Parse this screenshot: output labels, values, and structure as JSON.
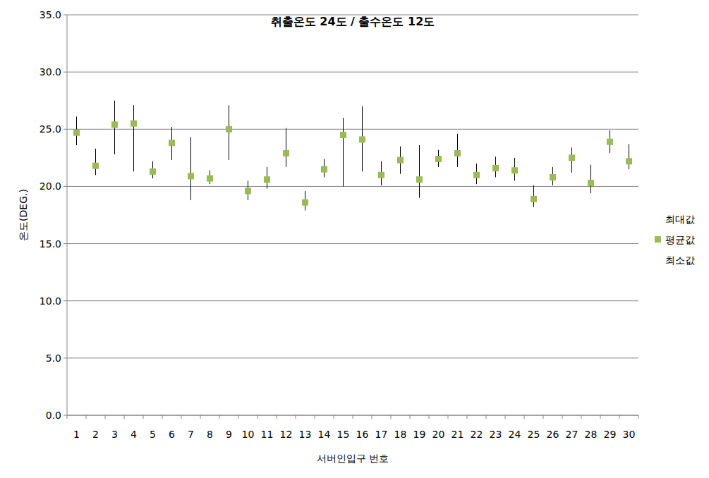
{
  "chart_data": {
    "type": "high_low",
    "title": "취출온도 24도 / 출수온도 12도",
    "x_label": "서버인입구 번호",
    "y_label": "온도(DEG.)",
    "categories": [
      1,
      2,
      3,
      4,
      5,
      6,
      7,
      8,
      9,
      10,
      11,
      12,
      13,
      14,
      15,
      16,
      17,
      18,
      19,
      20,
      21,
      22,
      23,
      24,
      25,
      26,
      27,
      28,
      29,
      30
    ],
    "series": [
      {
        "name": "최대값",
        "color": "#000000",
        "marker": "none",
        "values": [
          26.1,
          23.3,
          27.5,
          27.1,
          22.2,
          25.2,
          24.3,
          21.4,
          27.1,
          20.5,
          21.7,
          25.1,
          19.6,
          22.4,
          26.0,
          27.0,
          22.2,
          23.5,
          23.6,
          23.2,
          24.6,
          22.0,
          22.6,
          22.5,
          20.1,
          21.7,
          23.4,
          21.9,
          24.9,
          23.7
        ]
      },
      {
        "name": "평균값",
        "color": "#9bbb59",
        "marker": "square",
        "values": [
          24.7,
          21.8,
          25.4,
          25.5,
          21.3,
          23.8,
          20.9,
          20.7,
          25.0,
          19.6,
          20.6,
          22.9,
          18.6,
          21.5,
          24.5,
          24.1,
          21.0,
          22.3,
          20.6,
          22.4,
          22.9,
          21.0,
          21.6,
          21.4,
          18.9,
          20.8,
          22.5,
          20.3,
          23.9,
          22.2
        ]
      },
      {
        "name": "최소값",
        "color": "#000000",
        "marker": "none",
        "values": [
          23.6,
          21.0,
          22.8,
          21.3,
          20.7,
          22.3,
          18.8,
          20.2,
          22.3,
          18.8,
          19.8,
          21.7,
          17.9,
          20.8,
          20.0,
          21.3,
          20.1,
          21.1,
          19.0,
          21.7,
          21.7,
          20.2,
          20.8,
          20.5,
          18.2,
          20.1,
          21.2,
          19.4,
          22.9,
          21.5
        ]
      }
    ],
    "ylim": [
      0,
      35
    ],
    "yticks": [
      {
        "value": 0,
        "label": "0.0"
      },
      {
        "value": 5,
        "label": "5.0"
      },
      {
        "value": 10,
        "label": "10.0"
      },
      {
        "value": 15,
        "label": "15.0"
      },
      {
        "value": 20,
        "label": "20.0"
      },
      {
        "value": 25,
        "label": "25.0"
      },
      {
        "value": 30,
        "label": "30.0"
      },
      {
        "value": 35,
        "label": "35.0"
      }
    ],
    "grid": true,
    "legend": "right"
  }
}
